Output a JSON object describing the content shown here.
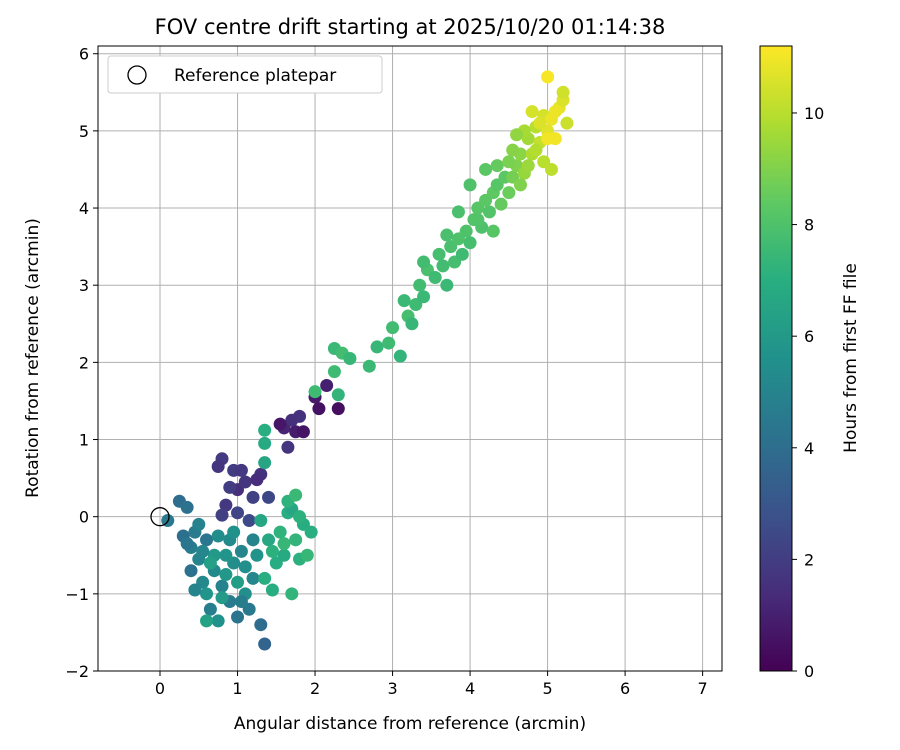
{
  "chart_data": {
    "type": "scatter",
    "title": "FOV centre drift starting at 2025/10/20 01:14:38",
    "xlabel": "Angular distance from reference (arcmin)",
    "ylabel": "Rotation from reference (arcmin)",
    "xlim": [
      -0.8,
      7.25
    ],
    "ylim": [
      -2,
      6.1
    ],
    "xticks": [
      0,
      1,
      2,
      3,
      4,
      5,
      6,
      7
    ],
    "yticks": [
      -2,
      -1,
      0,
      1,
      2,
      3,
      4,
      5,
      6
    ],
    "grid": true,
    "legend": {
      "position": "top-left",
      "entries": [
        "Reference platepar"
      ]
    },
    "reference_point": {
      "x": 0,
      "y": 0,
      "name": "Reference platepar"
    },
    "colorbar": {
      "label": "Hours from first FF file",
      "range": [
        0,
        11.2
      ],
      "ticks": [
        0,
        2,
        4,
        6,
        8,
        10
      ],
      "colormap": "viridis"
    },
    "points": [
      {
        "x": 1.0,
        "y": 0.35,
        "h": 1.5
      },
      {
        "x": 1.1,
        "y": 0.45,
        "h": 1.7
      },
      {
        "x": 0.95,
        "y": 0.6,
        "h": 2.0
      },
      {
        "x": 0.85,
        "y": 0.15,
        "h": 1.8
      },
      {
        "x": 1.3,
        "y": 0.55,
        "h": 1.6
      },
      {
        "x": 1.2,
        "y": 0.25,
        "h": 2.2
      },
      {
        "x": 0.8,
        "y": 0.75,
        "h": 1.9
      },
      {
        "x": 1.0,
        "y": 0.05,
        "h": 2.3
      },
      {
        "x": 1.15,
        "y": -0.05,
        "h": 2.5
      },
      {
        "x": 0.75,
        "y": 0.65,
        "h": 1.7
      },
      {
        "x": 0.8,
        "y": 0.02,
        "h": 2.1
      },
      {
        "x": 1.05,
        "y": 0.6,
        "h": 1.8
      },
      {
        "x": 0.9,
        "y": 0.38,
        "h": 2.0
      },
      {
        "x": 1.25,
        "y": 0.48,
        "h": 1.4
      },
      {
        "x": 1.4,
        "y": 0.25,
        "h": 2.4
      },
      {
        "x": 1.6,
        "y": 1.15,
        "h": 1.2
      },
      {
        "x": 1.7,
        "y": 1.25,
        "h": 1.5
      },
      {
        "x": 1.8,
        "y": 1.3,
        "h": 1.6
      },
      {
        "x": 1.75,
        "y": 1.1,
        "h": 0.9
      },
      {
        "x": 1.85,
        "y": 1.1,
        "h": 0.6
      },
      {
        "x": 1.65,
        "y": 0.9,
        "h": 1.7
      },
      {
        "x": 2.0,
        "y": 1.55,
        "h": 0.8
      },
      {
        "x": 2.05,
        "y": 1.4,
        "h": 0.5
      },
      {
        "x": 2.15,
        "y": 1.7,
        "h": 1.0
      },
      {
        "x": 2.3,
        "y": 1.4,
        "h": 0.4
      },
      {
        "x": 1.55,
        "y": 1.2,
        "h": 0.7
      },
      {
        "x": 0.25,
        "y": 0.2,
        "h": 4.0
      },
      {
        "x": 0.35,
        "y": 0.12,
        "h": 4.2
      },
      {
        "x": 0.1,
        "y": -0.05,
        "h": 4.5
      },
      {
        "x": 0.3,
        "y": -0.25,
        "h": 4.1
      },
      {
        "x": 0.4,
        "y": -0.4,
        "h": 4.7
      },
      {
        "x": 0.5,
        "y": -0.55,
        "h": 5.0
      },
      {
        "x": 0.6,
        "y": -0.3,
        "h": 4.4
      },
      {
        "x": 0.7,
        "y": -0.7,
        "h": 5.3
      },
      {
        "x": 0.8,
        "y": -0.9,
        "h": 4.9
      },
      {
        "x": 0.9,
        "y": -1.1,
        "h": 4.6
      },
      {
        "x": 1.0,
        "y": -1.3,
        "h": 4.3
      },
      {
        "x": 1.1,
        "y": -1.0,
        "h": 5.5
      },
      {
        "x": 1.2,
        "y": -0.8,
        "h": 5.1
      },
      {
        "x": 1.3,
        "y": -1.4,
        "h": 4.0
      },
      {
        "x": 1.35,
        "y": -1.65,
        "h": 3.6
      },
      {
        "x": 0.65,
        "y": -1.2,
        "h": 4.8
      },
      {
        "x": 0.75,
        "y": -1.35,
        "h": 5.6
      },
      {
        "x": 0.55,
        "y": -0.85,
        "h": 5.2
      },
      {
        "x": 0.95,
        "y": -0.6,
        "h": 5.4
      },
      {
        "x": 1.05,
        "y": -0.45,
        "h": 5.0
      },
      {
        "x": 0.45,
        "y": -0.2,
        "h": 4.6
      },
      {
        "x": 0.6,
        "y": -1.0,
        "h": 5.8
      },
      {
        "x": 0.85,
        "y": -0.75,
        "h": 5.9
      },
      {
        "x": 1.15,
        "y": -1.2,
        "h": 4.5
      },
      {
        "x": 1.25,
        "y": -0.5,
        "h": 5.7
      },
      {
        "x": 0.7,
        "y": -0.5,
        "h": 6.0
      },
      {
        "x": 0.4,
        "y": -0.7,
        "h": 4.2
      },
      {
        "x": 0.5,
        "y": -0.1,
        "h": 4.9
      },
      {
        "x": 0.9,
        "y": -0.3,
        "h": 5.3
      },
      {
        "x": 1.0,
        "y": -0.85,
        "h": 6.2
      },
      {
        "x": 0.8,
        "y": -1.05,
        "h": 6.1
      },
      {
        "x": 1.1,
        "y": -0.65,
        "h": 5.5
      },
      {
        "x": 0.65,
        "y": -0.6,
        "h": 6.3
      },
      {
        "x": 0.35,
        "y": -0.35,
        "h": 4.4
      },
      {
        "x": 0.55,
        "y": -0.45,
        "h": 5.1
      },
      {
        "x": 0.95,
        "y": -0.2,
        "h": 5.6
      },
      {
        "x": 1.2,
        "y": -0.3,
        "h": 5.0
      },
      {
        "x": 0.75,
        "y": -0.25,
        "h": 5.4
      },
      {
        "x": 1.05,
        "y": -1.1,
        "h": 4.7
      },
      {
        "x": 0.85,
        "y": -0.5,
        "h": 5.8
      },
      {
        "x": 0.6,
        "y": -1.35,
        "h": 6.4
      },
      {
        "x": 0.45,
        "y": -0.95,
        "h": 5.0
      },
      {
        "x": 1.3,
        "y": -0.05,
        "h": 6.6
      },
      {
        "x": 1.35,
        "y": 0.7,
        "h": 6.5
      },
      {
        "x": 1.35,
        "y": 0.95,
        "h": 6.8
      },
      {
        "x": 1.35,
        "y": 1.12,
        "h": 7.0
      },
      {
        "x": 1.4,
        "y": -0.3,
        "h": 6.7
      },
      {
        "x": 1.45,
        "y": -0.45,
        "h": 7.1
      },
      {
        "x": 1.5,
        "y": -0.6,
        "h": 6.9
      },
      {
        "x": 1.55,
        "y": -0.2,
        "h": 7.2
      },
      {
        "x": 1.6,
        "y": -0.5,
        "h": 6.8
      },
      {
        "x": 1.65,
        "y": 0.05,
        "h": 7.0
      },
      {
        "x": 1.7,
        "y": 0.1,
        "h": 6.6
      },
      {
        "x": 1.75,
        "y": -0.3,
        "h": 7.3
      },
      {
        "x": 1.8,
        "y": -0.55,
        "h": 7.1
      },
      {
        "x": 1.85,
        "y": -0.1,
        "h": 6.9
      },
      {
        "x": 1.9,
        "y": -0.5,
        "h": 7.4
      },
      {
        "x": 1.95,
        "y": -0.2,
        "h": 7.0
      },
      {
        "x": 1.65,
        "y": 0.2,
        "h": 7.2
      },
      {
        "x": 1.75,
        "y": 0.28,
        "h": 7.5
      },
      {
        "x": 1.7,
        "y": -1.0,
        "h": 7.3
      },
      {
        "x": 1.45,
        "y": -0.95,
        "h": 6.9
      },
      {
        "x": 1.35,
        "y": -0.8,
        "h": 7.0
      },
      {
        "x": 1.6,
        "y": -0.35,
        "h": 7.4
      },
      {
        "x": 1.8,
        "y": 0.0,
        "h": 7.1
      },
      {
        "x": 2.0,
        "y": 1.62,
        "h": 7.6
      },
      {
        "x": 2.25,
        "y": 2.18,
        "h": 7.5
      },
      {
        "x": 2.35,
        "y": 2.12,
        "h": 7.7
      },
      {
        "x": 2.45,
        "y": 2.05,
        "h": 7.4
      },
      {
        "x": 2.3,
        "y": 1.58,
        "h": 7.3
      },
      {
        "x": 2.25,
        "y": 1.88,
        "h": 7.6
      },
      {
        "x": 2.7,
        "y": 1.95,
        "h": 7.5
      },
      {
        "x": 2.8,
        "y": 2.2,
        "h": 7.4
      },
      {
        "x": 2.95,
        "y": 2.25,
        "h": 7.6
      },
      {
        "x": 3.0,
        "y": 2.45,
        "h": 7.7
      },
      {
        "x": 3.1,
        "y": 2.08,
        "h": 7.3
      },
      {
        "x": 3.15,
        "y": 2.8,
        "h": 7.5
      },
      {
        "x": 3.2,
        "y": 2.6,
        "h": 7.8
      },
      {
        "x": 3.25,
        "y": 2.5,
        "h": 7.4
      },
      {
        "x": 3.3,
        "y": 2.75,
        "h": 7.6
      },
      {
        "x": 3.35,
        "y": 3.0,
        "h": 7.7
      },
      {
        "x": 3.4,
        "y": 2.85,
        "h": 7.5
      },
      {
        "x": 3.45,
        "y": 3.2,
        "h": 7.9
      },
      {
        "x": 3.55,
        "y": 3.1,
        "h": 7.6
      },
      {
        "x": 3.6,
        "y": 3.4,
        "h": 7.8
      },
      {
        "x": 3.65,
        "y": 3.25,
        "h": 7.7
      },
      {
        "x": 3.7,
        "y": 3.0,
        "h": 7.5
      },
      {
        "x": 3.75,
        "y": 3.5,
        "h": 7.9
      },
      {
        "x": 3.8,
        "y": 3.3,
        "h": 7.8
      },
      {
        "x": 3.85,
        "y": 3.6,
        "h": 8.0
      },
      {
        "x": 3.9,
        "y": 3.4,
        "h": 7.6
      },
      {
        "x": 3.95,
        "y": 3.7,
        "h": 8.0
      },
      {
        "x": 4.0,
        "y": 3.55,
        "h": 7.8
      },
      {
        "x": 4.05,
        "y": 3.85,
        "h": 8.1
      },
      {
        "x": 4.1,
        "y": 4.0,
        "h": 8.2
      },
      {
        "x": 4.15,
        "y": 3.75,
        "h": 8.0
      },
      {
        "x": 4.2,
        "y": 4.1,
        "h": 8.3
      },
      {
        "x": 4.25,
        "y": 3.95,
        "h": 8.1
      },
      {
        "x": 4.3,
        "y": 4.2,
        "h": 8.4
      },
      {
        "x": 4.35,
        "y": 4.3,
        "h": 8.2
      },
      {
        "x": 4.4,
        "y": 4.05,
        "h": 8.5
      },
      {
        "x": 4.45,
        "y": 4.4,
        "h": 8.3
      },
      {
        "x": 4.5,
        "y": 4.2,
        "h": 8.6
      },
      {
        "x": 4.0,
        "y": 4.3,
        "h": 8.0
      },
      {
        "x": 3.85,
        "y": 3.95,
        "h": 7.9
      },
      {
        "x": 4.2,
        "y": 4.5,
        "h": 8.3
      },
      {
        "x": 4.1,
        "y": 3.85,
        "h": 8.1
      },
      {
        "x": 3.4,
        "y": 3.3,
        "h": 7.7
      },
      {
        "x": 3.7,
        "y": 3.65,
        "h": 7.9
      },
      {
        "x": 4.3,
        "y": 3.7,
        "h": 8.2
      },
      {
        "x": 4.35,
        "y": 4.55,
        "h": 8.5
      },
      {
        "x": 4.55,
        "y": 4.4,
        "h": 8.8
      },
      {
        "x": 4.6,
        "y": 4.55,
        "h": 9.0
      },
      {
        "x": 4.65,
        "y": 4.7,
        "h": 9.2
      },
      {
        "x": 4.7,
        "y": 4.45,
        "h": 9.4
      },
      {
        "x": 4.75,
        "y": 4.9,
        "h": 9.6
      },
      {
        "x": 4.8,
        "y": 4.7,
        "h": 9.8
      },
      {
        "x": 4.85,
        "y": 5.05,
        "h": 10.0
      },
      {
        "x": 4.9,
        "y": 4.85,
        "h": 10.2
      },
      {
        "x": 4.95,
        "y": 5.2,
        "h": 10.5
      },
      {
        "x": 5.0,
        "y": 5.0,
        "h": 10.7
      },
      {
        "x": 5.05,
        "y": 5.15,
        "h": 10.9
      },
      {
        "x": 5.1,
        "y": 4.9,
        "h": 11.0
      },
      {
        "x": 5.15,
        "y": 5.3,
        "h": 10.8
      },
      {
        "x": 5.2,
        "y": 5.4,
        "h": 10.6
      },
      {
        "x": 5.25,
        "y": 5.1,
        "h": 10.3
      },
      {
        "x": 5.0,
        "y": 5.7,
        "h": 11.1
      },
      {
        "x": 5.2,
        "y": 5.5,
        "h": 10.4
      },
      {
        "x": 4.95,
        "y": 4.6,
        "h": 10.0
      },
      {
        "x": 5.05,
        "y": 4.5,
        "h": 10.1
      },
      {
        "x": 4.8,
        "y": 5.25,
        "h": 10.5
      },
      {
        "x": 4.7,
        "y": 5.0,
        "h": 9.7
      },
      {
        "x": 4.55,
        "y": 4.75,
        "h": 9.1
      },
      {
        "x": 4.6,
        "y": 4.95,
        "h": 9.3
      },
      {
        "x": 4.75,
        "y": 4.55,
        "h": 9.5
      },
      {
        "x": 4.9,
        "y": 5.1,
        "h": 10.6
      },
      {
        "x": 5.1,
        "y": 5.25,
        "h": 10.9
      },
      {
        "x": 4.85,
        "y": 4.75,
        "h": 9.9
      },
      {
        "x": 5.0,
        "y": 4.9,
        "h": 11.0
      },
      {
        "x": 4.65,
        "y": 4.3,
        "h": 9.0
      },
      {
        "x": 4.5,
        "y": 4.6,
        "h": 8.9
      }
    ]
  }
}
